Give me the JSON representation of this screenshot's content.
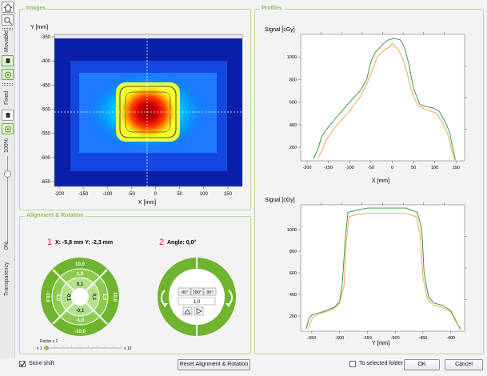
{
  "toolbar": {
    "movable_label": "Movable",
    "fixed_label": "Fixed",
    "transparency_top": "100%",
    "transparency_bottom": "0%",
    "transparency_label": "Transparency",
    "transparency_value": 0.9
  },
  "images": {
    "title": "Images",
    "chart_data": {
      "type": "heatmap",
      "ylabel": "Y [mm]",
      "xlabel": "X [mm]",
      "x_ticks": [
        "-200",
        "-150",
        "-100",
        "-50",
        "0",
        "50",
        "100",
        "150"
      ],
      "y_ticks": [
        "-350",
        "-400",
        "-450",
        "-500",
        "-550",
        "-600",
        "-650"
      ],
      "xlim": [
        -210,
        180
      ],
      "ylim": [
        -660,
        -345
      ]
    }
  },
  "profiles": {
    "title": "Profiles",
    "chart_data": [
      {
        "type": "line",
        "ylabel": "Signal [cGy]",
        "xlabel": "X [mm]",
        "x_ticks": [
          "-200",
          "-150",
          "-100",
          "-50",
          "0",
          "50",
          "100",
          "150"
        ],
        "y_ticks": [
          "200",
          "400",
          "600",
          "800",
          "1000"
        ],
        "xlim": [
          -215,
          170
        ],
        "ylim": [
          80,
          1200
        ],
        "series": [
          {
            "color": "#2e8b3e",
            "x": [
              -185,
              -175,
              -165,
              -150,
              -130,
              -100,
              -75,
              -60,
              -50,
              -40,
              -30,
              -20,
              -10,
              0,
              10,
              20,
              30,
              40,
              50,
              65,
              80,
              95,
              110,
              125,
              135,
              140,
              145,
              148
            ],
            "y": [
              100,
              180,
              300,
              380,
              470,
              600,
              700,
              800,
              960,
              1040,
              1080,
              1120,
              1150,
              1160,
              1160,
              1150,
              1070,
              920,
              720,
              580,
              560,
              550,
              520,
              420,
              330,
              230,
              150,
              90
            ]
          },
          {
            "color": "#f0a040",
            "x": [
              -175,
              -165,
              -155,
              -140,
              -120,
              -100,
              -75,
              -60,
              -45,
              -35,
              -25,
              -15,
              -5,
              0,
              5,
              15,
              25,
              35,
              45,
              60,
              75,
              90,
              105,
              120,
              130,
              137,
              142,
              146
            ],
            "y": [
              100,
              170,
              260,
              350,
              440,
              520,
              650,
              760,
              900,
              1000,
              1040,
              1070,
              1090,
              1120,
              1100,
              1060,
              980,
              860,
              700,
              570,
              540,
              520,
              500,
              400,
              320,
              220,
              140,
              90
            ]
          }
        ]
      },
      {
        "type": "line",
        "ylabel": "Signal [cGy]",
        "xlabel": "Y [mm]",
        "x_ticks": [
          "-650",
          "-600",
          "-550",
          "-500",
          "-450",
          "-400"
        ],
        "y_ticks": [
          "200",
          "400",
          "600",
          "800",
          "1000"
        ],
        "xlim": [
          -670,
          -375
        ],
        "ylim": [
          60,
          1230
        ],
        "series": [
          {
            "color": "#2e8b3e",
            "x": [
              -660,
              -655,
              -650,
              -630,
              -610,
              -600,
              -595,
              -590,
              -585,
              -570,
              -550,
              -520,
              -500,
              -480,
              -460,
              -452,
              -448,
              -440,
              -430,
              -415,
              -400,
              -390,
              -383
            ],
            "y": [
              80,
              180,
              210,
              240,
              280,
              330,
              500,
              900,
              1160,
              1180,
              1200,
              1200,
              1200,
              1200,
              1160,
              1000,
              600,
              380,
              320,
              300,
              250,
              150,
              80
            ]
          },
          {
            "color": "#f0a040",
            "x": [
              -657,
              -650,
              -645,
              -630,
              -610,
              -600,
              -592,
              -588,
              -583,
              -570,
              -550,
              -520,
              -500,
              -480,
              -462,
              -455,
              -450,
              -442,
              -430,
              -415,
              -400,
              -390,
              -381
            ],
            "y": [
              80,
              170,
              200,
              230,
              270,
              320,
              480,
              880,
              1120,
              1140,
              1150,
              1150,
              1150,
              1150,
              1120,
              960,
              560,
              360,
              300,
              280,
              240,
              140,
              80
            ]
          }
        ]
      }
    ]
  },
  "alignment": {
    "title": "Alignment & Rotation",
    "pos_number": "1",
    "pos_text": "X: -5,8 mm Y: -2,3 mm",
    "dial_labels": {
      "top_outer": "10,0",
      "top_mid": "1,0",
      "top_inner": "0,1",
      "bottom_inner": "-0,1",
      "bottom_mid": "-1,0",
      "bottom_outer": "-10,0",
      "left_outer": "-10,0",
      "left_mid": "-1,0",
      "left_inner": "-0,1",
      "right_inner": "0,1",
      "right_mid": "1,0",
      "right_outer": "10,0"
    },
    "factor_label": "Factor x 1",
    "factor_min": "x 1",
    "factor_max": "x 10",
    "angle_number": "2",
    "angle_text": "Angle: 0,0°",
    "rot_buttons": [
      "-90°",
      "180°",
      "90°"
    ],
    "rot_value": "1,0"
  },
  "footer": {
    "store_shift": "Store shift",
    "reset_button": "Reset Alignment & Rotation",
    "to_selected_folder": "To selected folder",
    "ok": "OK",
    "cancel": "Cancel"
  },
  "colors": {
    "accent": "#7dc242",
    "group_border": "#b9d99d"
  }
}
